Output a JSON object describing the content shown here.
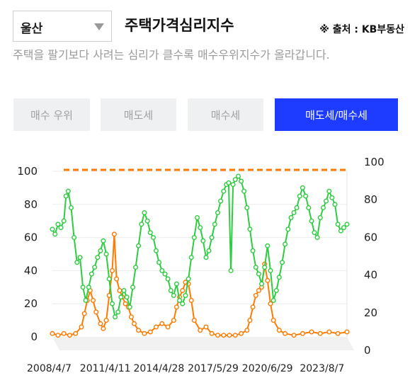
{
  "region": {
    "selected": "울산"
  },
  "header": {
    "title": "주택가격심리지수",
    "source": "※ 출처 : KB부동산"
  },
  "description": "주택을 팔기보다 사려는 심리가 클수록 매수우위지수가 올라갑니다.",
  "buttons": [
    {
      "label": "매수 우위",
      "active": false
    },
    {
      "label": "매도세",
      "active": false
    },
    {
      "label": "매수세",
      "active": false
    },
    {
      "label": "매도세/매수세",
      "active": true
    }
  ],
  "colors": {
    "green": "#2ecc40",
    "orange": "#ff7a00",
    "accent": "#1e3cff"
  },
  "chart_data": {
    "type": "line",
    "x_start": "2008/4/7",
    "x_end": "2025/1/6",
    "x_ticks": [
      "2008/4/7",
      "2011/4/11",
      "2014/4/28",
      "2017/5/29",
      "2020/6/29",
      "2023/8/7"
    ],
    "y_left": {
      "ticks": [
        0,
        20,
        40,
        60,
        80,
        100
      ],
      "range": [
        0,
        100
      ]
    },
    "y_right": {
      "ticks": [
        0,
        20,
        40,
        60,
        80,
        100
      ],
      "range": [
        0,
        100
      ]
    },
    "reference_line": {
      "value": 100,
      "color": "#ff7a00",
      "style": "dashed"
    },
    "series": [
      {
        "color": "#2ecc40",
        "points": [
          [
            "2008/4/7",
            65
          ],
          [
            "2008/6/1",
            62
          ],
          [
            "2008/8/1",
            68
          ],
          [
            "2008/10/1",
            66
          ],
          [
            "2008/12/1",
            70
          ],
          [
            "2009/1/15",
            85
          ],
          [
            "2009/3/1",
            88
          ],
          [
            "2009/5/1",
            78
          ],
          [
            "2009/7/1",
            60
          ],
          [
            "2009/9/1",
            45
          ],
          [
            "2009/11/1",
            48
          ],
          [
            "2010/1/1",
            30
          ],
          [
            "2010/3/1",
            22
          ],
          [
            "2010/5/1",
            30
          ],
          [
            "2010/7/1",
            38
          ],
          [
            "2010/9/1",
            42
          ],
          [
            "2010/11/1",
            48
          ],
          [
            "2011/1/1",
            52
          ],
          [
            "2011/3/1",
            58
          ],
          [
            "2011/5/1",
            50
          ],
          [
            "2011/7/1",
            35
          ],
          [
            "2011/9/1",
            20
          ],
          [
            "2011/11/1",
            12
          ],
          [
            "2012/1/1",
            15
          ],
          [
            "2012/3/1",
            24
          ],
          [
            "2012/5/1",
            28
          ],
          [
            "2012/7/1",
            24
          ],
          [
            "2012/9/1",
            18
          ],
          [
            "2012/11/1",
            30
          ],
          [
            "2013/1/1",
            42
          ],
          [
            "2013/3/1",
            55
          ],
          [
            "2013/5/1",
            68
          ],
          [
            "2013/7/1",
            75
          ],
          [
            "2013/9/1",
            70
          ],
          [
            "2013/11/1",
            63
          ],
          [
            "2014/1/1",
            60
          ],
          [
            "2014/3/1",
            52
          ],
          [
            "2014/5/1",
            45
          ],
          [
            "2014/7/1",
            40
          ],
          [
            "2014/9/1",
            38
          ],
          [
            "2014/11/1",
            35
          ],
          [
            "2015/1/1",
            28
          ],
          [
            "2015/3/1",
            25
          ],
          [
            "2015/5/1",
            32
          ],
          [
            "2015/7/1",
            22
          ],
          [
            "2015/9/1",
            20
          ],
          [
            "2015/11/1",
            25
          ],
          [
            "2016/1/1",
            35
          ],
          [
            "2016/3/1",
            48
          ],
          [
            "2016/5/1",
            60
          ],
          [
            "2016/7/1",
            72
          ],
          [
            "2016/9/1",
            66
          ],
          [
            "2016/11/1",
            58
          ],
          [
            "2017/1/1",
            48
          ],
          [
            "2017/3/1",
            52
          ],
          [
            "2017/5/1",
            60
          ],
          [
            "2017/7/1",
            68
          ],
          [
            "2017/9/1",
            75
          ],
          [
            "2017/11/1",
            82
          ],
          [
            "2018/1/1",
            88
          ],
          [
            "2018/3/1",
            92
          ],
          [
            "2018/4/15",
            93
          ],
          [
            "2018/6/1",
            40
          ],
          [
            "2018/7/15",
            92
          ],
          [
            "2018/9/1",
            95
          ],
          [
            "2018/11/1",
            97
          ],
          [
            "2019/1/1",
            94
          ],
          [
            "2019/3/1",
            88
          ],
          [
            "2019/5/1",
            78
          ],
          [
            "2019/7/1",
            65
          ],
          [
            "2019/9/1",
            52
          ],
          [
            "2019/11/1",
            42
          ],
          [
            "2020/1/1",
            38
          ],
          [
            "2020/3/1",
            32
          ],
          [
            "2020/5/1",
            42
          ],
          [
            "2020/7/1",
            55
          ],
          [
            "2020/9/1",
            40
          ],
          [
            "2020/11/1",
            22
          ],
          [
            "2021/1/1",
            28
          ],
          [
            "2021/3/1",
            36
          ],
          [
            "2021/5/1",
            45
          ],
          [
            "2021/7/1",
            56
          ],
          [
            "2021/9/1",
            65
          ],
          [
            "2021/11/1",
            72
          ],
          [
            "2022/1/1",
            75
          ],
          [
            "2022/3/1",
            78
          ],
          [
            "2022/5/1",
            85
          ],
          [
            "2022/7/1",
            90
          ],
          [
            "2022/9/1",
            85
          ],
          [
            "2022/11/1",
            78
          ],
          [
            "2023/1/1",
            70
          ],
          [
            "2023/3/1",
            63
          ],
          [
            "2023/5/1",
            60
          ],
          [
            "2023/7/1",
            72
          ],
          [
            "2023/9/1",
            78
          ],
          [
            "2023/11/1",
            82
          ],
          [
            "2024/1/1",
            88
          ],
          [
            "2024/3/1",
            84
          ],
          [
            "2024/5/1",
            80
          ],
          [
            "2024/7/1",
            68
          ],
          [
            "2024/9/1",
            64
          ],
          [
            "2024/11/1",
            66
          ],
          [
            "2025/1/6",
            68
          ]
        ]
      },
      {
        "color": "#ff7a00",
        "points": [
          [
            "2008/4/7",
            2
          ],
          [
            "2008/8/1",
            1
          ],
          [
            "2008/12/1",
            2
          ],
          [
            "2009/4/1",
            1
          ],
          [
            "2009/8/1",
            2
          ],
          [
            "2009/12/1",
            6
          ],
          [
            "2010/2/1",
            14
          ],
          [
            "2010/4/1",
            22
          ],
          [
            "2010/6/1",
            28
          ],
          [
            "2010/8/1",
            22
          ],
          [
            "2010/10/1",
            15
          ],
          [
            "2011/1/1",
            8
          ],
          [
            "2011/3/1",
            5
          ],
          [
            "2011/5/1",
            10
          ],
          [
            "2011/7/1",
            25
          ],
          [
            "2011/9/1",
            40
          ],
          [
            "2011/10/15",
            62
          ],
          [
            "2011/12/1",
            35
          ],
          [
            "2012/2/1",
            28
          ],
          [
            "2012/4/1",
            24
          ],
          [
            "2012/6/1",
            20
          ],
          [
            "2012/8/1",
            18
          ],
          [
            "2012/10/1",
            12
          ],
          [
            "2012/12/1",
            8
          ],
          [
            "2013/3/1",
            4
          ],
          [
            "2013/7/1",
            2
          ],
          [
            "2013/11/1",
            3
          ],
          [
            "2014/3/1",
            6
          ],
          [
            "2014/7/1",
            8
          ],
          [
            "2014/11/1",
            6
          ],
          [
            "2015/3/1",
            10
          ],
          [
            "2015/5/1",
            18
          ],
          [
            "2015/7/1",
            24
          ],
          [
            "2015/9/1",
            28
          ],
          [
            "2015/11/1",
            33
          ],
          [
            "2016/1/1",
            32
          ],
          [
            "2016/3/1",
            22
          ],
          [
            "2016/5/1",
            10
          ],
          [
            "2016/9/1",
            4
          ],
          [
            "2017/1/1",
            6
          ],
          [
            "2017/5/1",
            2
          ],
          [
            "2017/9/1",
            1
          ],
          [
            "2018/1/1",
            1
          ],
          [
            "2018/5/1",
            1
          ],
          [
            "2018/9/1",
            1
          ],
          [
            "2019/1/1",
            2
          ],
          [
            "2019/5/1",
            4
          ],
          [
            "2019/7/1",
            10
          ],
          [
            "2019/9/1",
            18
          ],
          [
            "2019/11/1",
            25
          ],
          [
            "2020/1/1",
            28
          ],
          [
            "2020/3/1",
            30
          ],
          [
            "2020/5/1",
            44
          ],
          [
            "2020/7/1",
            34
          ],
          [
            "2020/9/1",
            20
          ],
          [
            "2020/11/1",
            10
          ],
          [
            "2021/3/1",
            4
          ],
          [
            "2021/7/1",
            2
          ],
          [
            "2022/1/1",
            1
          ],
          [
            "2022/7/1",
            2
          ],
          [
            "2023/1/1",
            3
          ],
          [
            "2023/7/1",
            2
          ],
          [
            "2024/1/1",
            3
          ],
          [
            "2024/7/1",
            2
          ],
          [
            "2025/1/6",
            3
          ]
        ]
      }
    ]
  }
}
